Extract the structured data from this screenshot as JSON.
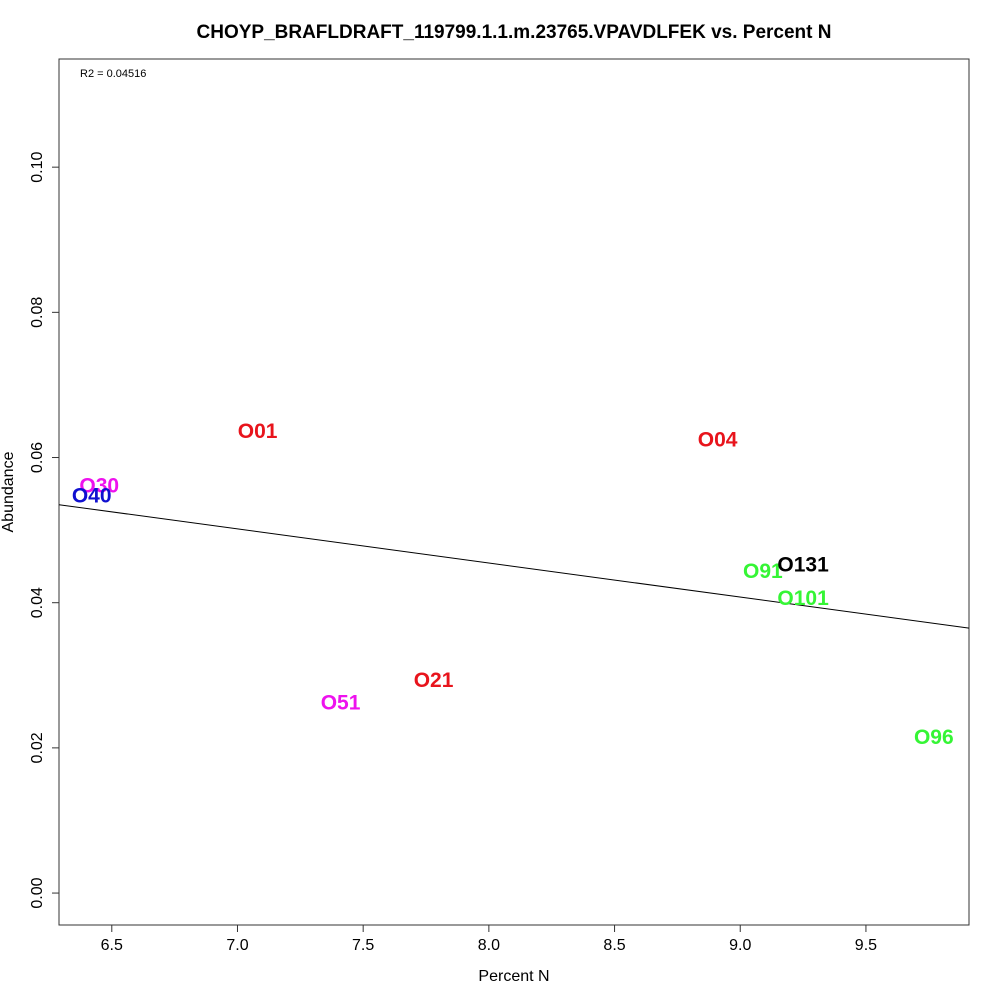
{
  "chart_data": {
    "type": "scatter",
    "title": "CHOYP_BRAFLDRAFT_119799.1.1.m.23765.VPAVDLFEK vs. Percent N",
    "xlabel": "Percent N",
    "ylabel": "Abundance",
    "annotation": "R2 = 0.04516",
    "xlim": [
      6.29,
      9.91
    ],
    "ylim": [
      -0.0044,
      0.1149
    ],
    "x_ticks": [
      6.5,
      7.0,
      7.5,
      8.0,
      8.5,
      9.0,
      9.5
    ],
    "x_tick_labels": [
      "6.5",
      "7.0",
      "7.5",
      "8.0",
      "8.5",
      "9.0",
      "9.5"
    ],
    "y_ticks": [
      0.0,
      0.02,
      0.04,
      0.06,
      0.08,
      0.1
    ],
    "y_tick_labels": [
      "0.00",
      "0.02",
      "0.04",
      "0.06",
      "0.08",
      "0.10"
    ],
    "grid": false,
    "points": [
      {
        "label": "O01",
        "x": 7.08,
        "y": 0.0636,
        "color": "#e8141c"
      },
      {
        "label": "O04",
        "x": 8.91,
        "y": 0.0624,
        "color": "#e8141c"
      },
      {
        "label": "O21",
        "x": 7.78,
        "y": 0.0293,
        "color": "#e8141c"
      },
      {
        "label": "O30",
        "x": 6.45,
        "y": 0.0561,
        "color": "#ee12ee"
      },
      {
        "label": "O51",
        "x": 7.41,
        "y": 0.0262,
        "color": "#ee12ee"
      },
      {
        "label": "O40",
        "x": 6.42,
        "y": 0.0547,
        "color": "#1010d0"
      },
      {
        "label": "O91",
        "x": 9.09,
        "y": 0.0443,
        "color": "#35f535"
      },
      {
        "label": "O101",
        "x": 9.25,
        "y": 0.0406,
        "color": "#35f535"
      },
      {
        "label": "O96",
        "x": 9.77,
        "y": 0.0214,
        "color": "#35f535"
      },
      {
        "label": "O131",
        "x": 9.25,
        "y": 0.0452,
        "color": "#000000"
      }
    ],
    "fit_line": {
      "x": [
        6.29,
        9.91
      ],
      "y": [
        0.0535,
        0.0365
      ],
      "color": "#000000"
    }
  }
}
